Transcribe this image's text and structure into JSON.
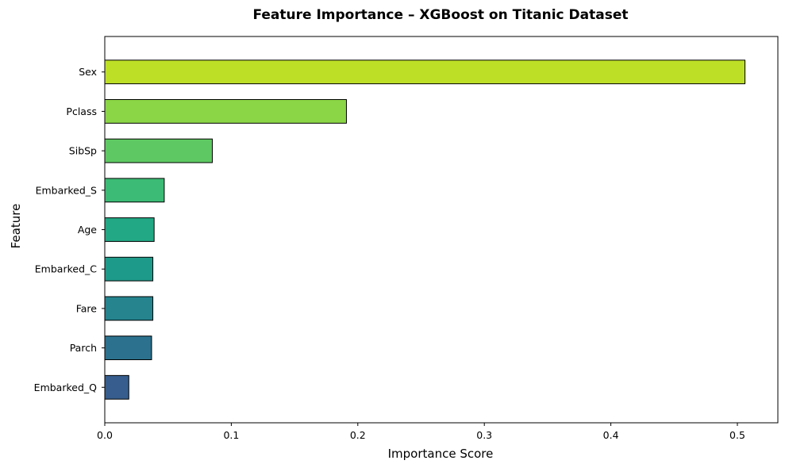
{
  "chart_data": {
    "type": "bar",
    "orientation": "horizontal",
    "title": "Feature Importance – XGBoost on Titanic Dataset",
    "xlabel": "Importance Score",
    "ylabel": "Feature",
    "xlim": [
      0,
      0.532
    ],
    "x_ticks": [
      "0.0",
      "0.1",
      "0.2",
      "0.3",
      "0.4",
      "0.5"
    ],
    "grid": false,
    "legend": "none",
    "categories": [
      "Sex",
      "Pclass",
      "SibSp",
      "Embarked_S",
      "Age",
      "Embarked_C",
      "Fare",
      "Parch",
      "Embarked_Q"
    ],
    "values": [
      0.506,
      0.191,
      0.085,
      0.047,
      0.039,
      0.038,
      0.038,
      0.037,
      0.019
    ],
    "colors": [
      "#bddf26",
      "#8bd646",
      "#5ec962",
      "#3bbb75",
      "#22a884",
      "#1e9a8a",
      "#25848e",
      "#2c728e",
      "#365d8d"
    ],
    "bar_edge_color": "#000000"
  }
}
